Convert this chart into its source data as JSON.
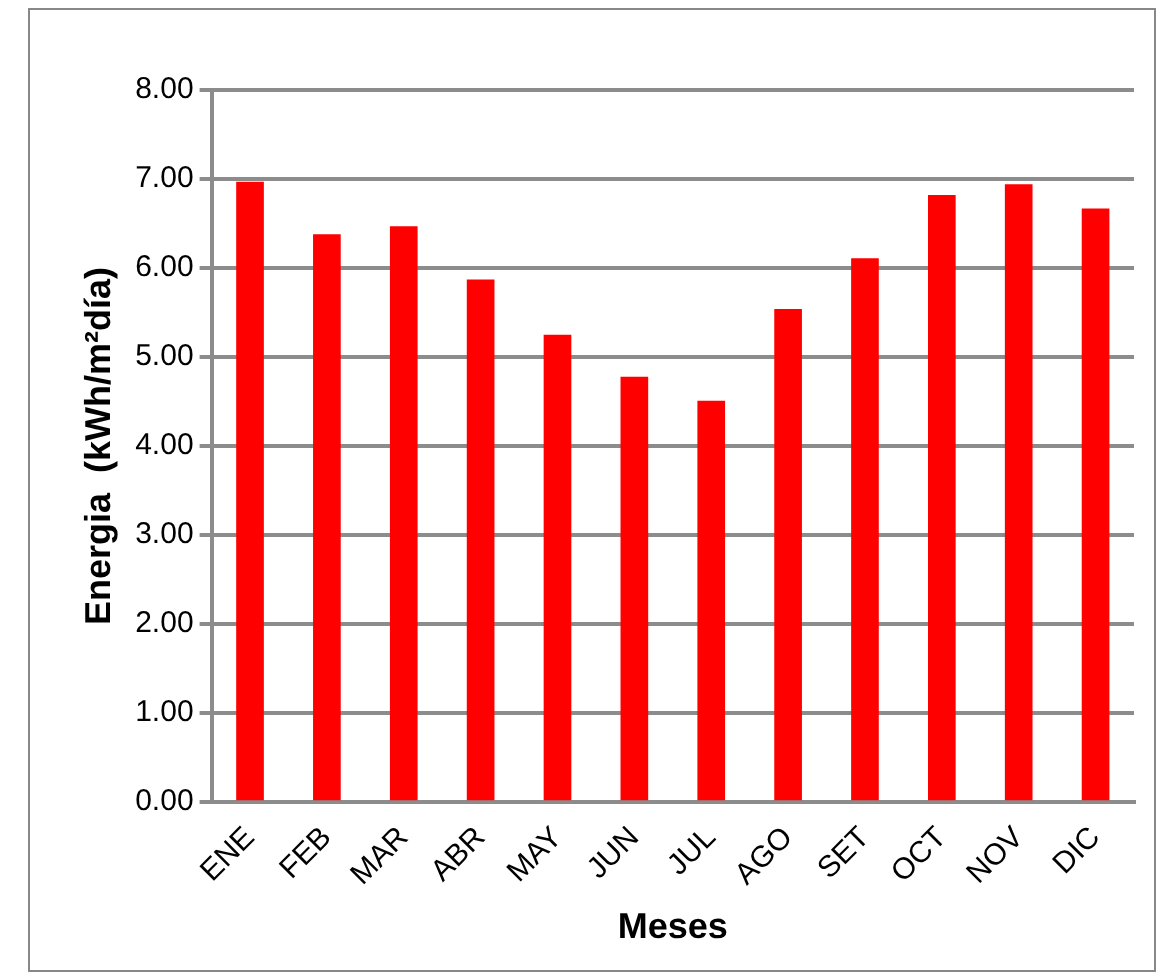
{
  "chart_data": {
    "type": "bar",
    "xlabel": "Meses",
    "ylabel": "Energia  (kWh/m²día)",
    "categories": [
      "ENE",
      "FEB",
      "MAR",
      "ABR",
      "MAY",
      "JUN",
      "JUL",
      "AGO",
      "SET",
      "OCT",
      "NOV",
      "DIC"
    ],
    "values": [
      6.97,
      6.38,
      6.47,
      5.87,
      5.25,
      4.78,
      4.51,
      5.54,
      6.11,
      6.82,
      6.94,
      6.67
    ],
    "color": "#ff0000",
    "ylim": [
      0,
      8
    ],
    "yticks": [
      {
        "value": 0,
        "label": "0.00"
      },
      {
        "value": 1,
        "label": "1.00"
      },
      {
        "value": 2,
        "label": "2.00"
      },
      {
        "value": 3,
        "label": "3.00"
      },
      {
        "value": 4,
        "label": "4.00"
      },
      {
        "value": 5,
        "label": "5.00"
      },
      {
        "value": 6,
        "label": "6.00"
      },
      {
        "value": 7,
        "label": "7.00"
      },
      {
        "value": 8,
        "label": "8.00"
      }
    ],
    "grid": "y",
    "legend": false
  }
}
